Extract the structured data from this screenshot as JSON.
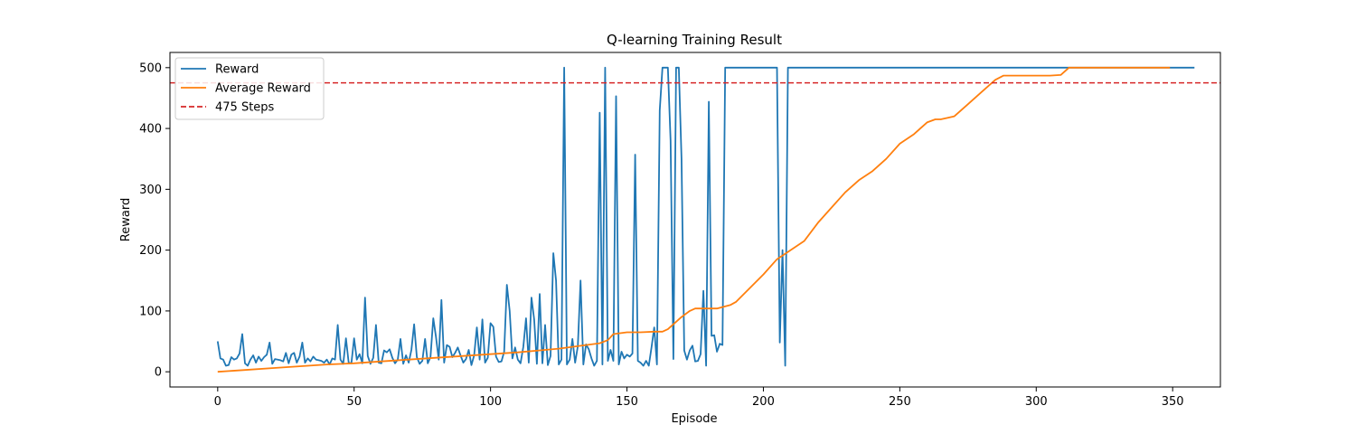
{
  "chart_data": {
    "type": "line",
    "title": "Q-learning Training Result",
    "xlabel": "Episode",
    "ylabel": "Reward",
    "xlim": [
      -17.5,
      367.5
    ],
    "ylim": [
      -25,
      525
    ],
    "xticks": [
      0,
      50,
      100,
      150,
      200,
      250,
      300,
      350
    ],
    "yticks": [
      0,
      100,
      200,
      300,
      400,
      500
    ],
    "legend_position": "top-left",
    "series": [
      {
        "name": "Reward",
        "color": "#1f77b4",
        "values": [
          50,
          22,
          20,
          10,
          11,
          24,
          20,
          22,
          30,
          62,
          14,
          10,
          20,
          27,
          15,
          25,
          18,
          24,
          28,
          48,
          13,
          21,
          20,
          19,
          17,
          31,
          14,
          28,
          31,
          15,
          25,
          48,
          15,
          22,
          17,
          25,
          20,
          19,
          18,
          15,
          20,
          12,
          22,
          20,
          77,
          20,
          13,
          55,
          15,
          14,
          55,
          20,
          29,
          14,
          122,
          26,
          13,
          23,
          77,
          15,
          14,
          35,
          32,
          37,
          23,
          14,
          20,
          54,
          13,
          27,
          15,
          36,
          78,
          24,
          13,
          18,
          54,
          14,
          24,
          88,
          57,
          20,
          118,
          15,
          44,
          41,
          24,
          31,
          40,
          27,
          15,
          21,
          36,
          11,
          27,
          73,
          20,
          86,
          15,
          23,
          80,
          74,
          25,
          16,
          17,
          33,
          143,
          100,
          22,
          40,
          20,
          14,
          41,
          88,
          15,
          122,
          86,
          13,
          128,
          14,
          77,
          11,
          26,
          195,
          150,
          12,
          20,
          500,
          12,
          20,
          54,
          15,
          42,
          150,
          12,
          45,
          37,
          22,
          10,
          18,
          426,
          12,
          500,
          18,
          36,
          18,
          453,
          12,
          33,
          22,
          28,
          25,
          30,
          357,
          18,
          15,
          10,
          18,
          10,
          40,
          73,
          12,
          430,
          500,
          500,
          500,
          380,
          21,
          500,
          500,
          350,
          35,
          20,
          35,
          43,
          17,
          18,
          29,
          133,
          10,
          444,
          59,
          60,
          33,
          46,
          44,
          500,
          500,
          500,
          500,
          500,
          500,
          500,
          500,
          500,
          500,
          500,
          500,
          500,
          500,
          500,
          500,
          500,
          500,
          500,
          500,
          48,
          200,
          10,
          500,
          500,
          500,
          500,
          500,
          500,
          500,
          500,
          500,
          500,
          500,
          500,
          500,
          500,
          500,
          500,
          500,
          500,
          500,
          500,
          500,
          500,
          500,
          500,
          500,
          500,
          500,
          500,
          500,
          500,
          500,
          500,
          500,
          500,
          500,
          500,
          500,
          500,
          500,
          500,
          500,
          500,
          500,
          500,
          500,
          500,
          500,
          500,
          500,
          500,
          500,
          500,
          500,
          500,
          500,
          500,
          500,
          500,
          500,
          500,
          500,
          500,
          500,
          500,
          500,
          500,
          500,
          500,
          500,
          500,
          500,
          500,
          500,
          500,
          500,
          500,
          500,
          500,
          500,
          500,
          500,
          500,
          500,
          500,
          500,
          500,
          500,
          500,
          500,
          500,
          500,
          500,
          500,
          500,
          500,
          500,
          500,
          500,
          500,
          500,
          500,
          500,
          500,
          500,
          500,
          500,
          500,
          500,
          500,
          500,
          500,
          500,
          500,
          500,
          500,
          500,
          500,
          500,
          500,
          500,
          500,
          500,
          500,
          500,
          500,
          500,
          500,
          500,
          500,
          500,
          500,
          500,
          500,
          500,
          500,
          500,
          500,
          500,
          500,
          500,
          500,
          500,
          500,
          500,
          500,
          500,
          500,
          500,
          500,
          500
        ]
      },
      {
        "name": "Average Reward",
        "color": "#ff7f0e",
        "x": [
          0,
          10,
          20,
          30,
          40,
          50,
          60,
          70,
          80,
          90,
          100,
          110,
          120,
          125,
          130,
          135,
          140,
          143,
          145,
          150,
          155,
          160,
          163,
          165,
          170,
          173,
          175,
          180,
          183,
          188,
          190,
          200,
          205,
          210,
          215,
          220,
          225,
          230,
          235,
          240,
          245,
          250,
          255,
          260,
          263,
          265,
          268,
          270,
          275,
          280,
          285,
          288,
          290,
          300,
          305,
          309,
          312,
          320,
          330,
          340,
          349
        ],
        "y": [
          0,
          3,
          6,
          9,
          12,
          14,
          17,
          20,
          23,
          26,
          29,
          32,
          36,
          38,
          41,
          44,
          47,
          52,
          62,
          65,
          65,
          66,
          66,
          70,
          90,
          100,
          104,
          104,
          104,
          110,
          115,
          160,
          185,
          200,
          215,
          245,
          270,
          295,
          315,
          330,
          350,
          375,
          390,
          410,
          415,
          415,
          418,
          420,
          440,
          460,
          480,
          487,
          487,
          487,
          487,
          488,
          500,
          500,
          500,
          500,
          500
        ]
      },
      {
        "name": "475 Steps",
        "color": "#d62728",
        "style": "dashed",
        "y_const": 475
      }
    ]
  }
}
